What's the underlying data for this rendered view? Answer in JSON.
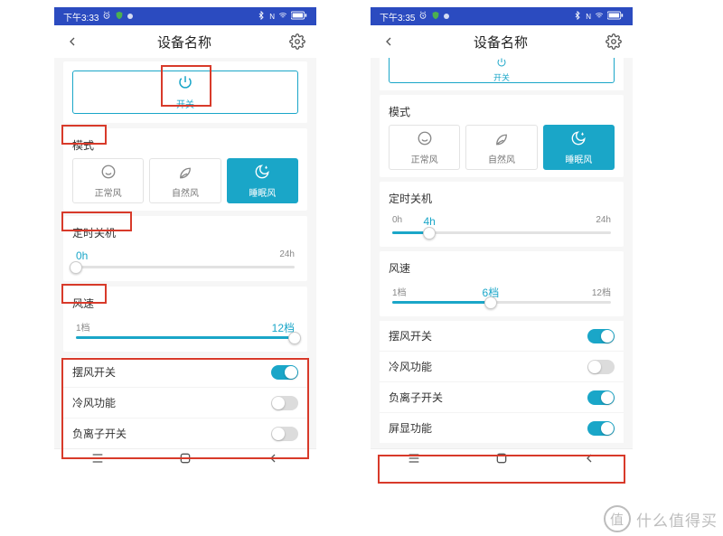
{
  "colors": {
    "accent": "#1aa6c8",
    "statusbar_bg": "#2b4bc0",
    "highlight": "#d83a2a",
    "divider": "#f3f3f3",
    "track": "#e2e2e2",
    "text": "#333333",
    "muted": "#888888",
    "watermark": "#bdbdbd"
  },
  "watermark": {
    "badge": "值",
    "text": "什么值得买"
  },
  "phone_left": {
    "statusbar": {
      "time": "下午3:33",
      "right_text": ""
    },
    "header": {
      "title": "设备名称"
    },
    "power": {
      "label": "开关"
    },
    "mode": {
      "title": "模式",
      "items": [
        {
          "label": "正常风",
          "icon": "smile",
          "active": false
        },
        {
          "label": "自然风",
          "icon": "leaf",
          "active": false
        },
        {
          "label": "睡眠风",
          "icon": "moon",
          "active": true
        }
      ]
    },
    "timer": {
      "title": "定时关机",
      "min_label": "0h",
      "max_label": "24h",
      "value_label": "",
      "percent": 0
    },
    "speed": {
      "title": "风速",
      "min_label": "1档",
      "max_label": "12档",
      "value_label": "",
      "percent": 100
    },
    "toggles": [
      {
        "label": "摆风开关",
        "on": true
      },
      {
        "label": "冷风功能",
        "on": false
      },
      {
        "label": "负离子开关",
        "on": false
      }
    ]
  },
  "phone_right": {
    "statusbar": {
      "time": "下午3:35",
      "right_text": ""
    },
    "header": {
      "title": "设备名称"
    },
    "power": {
      "label": "开关"
    },
    "mode": {
      "title": "模式",
      "items": [
        {
          "label": "正常风",
          "icon": "smile",
          "active": false
        },
        {
          "label": "自然风",
          "icon": "leaf",
          "active": false
        },
        {
          "label": "睡眠风",
          "icon": "moon",
          "active": true
        }
      ]
    },
    "timer": {
      "title": "定时关机",
      "min_label": "0h",
      "max_label": "24h",
      "value_label": "4h",
      "percent": 17
    },
    "speed": {
      "title": "风速",
      "min_label": "1档",
      "max_label": "12档",
      "value_label": "6档",
      "percent": 45
    },
    "toggles": [
      {
        "label": "摆风开关",
        "on": true
      },
      {
        "label": "冷风功能",
        "on": false
      },
      {
        "label": "负离子开关",
        "on": true
      },
      {
        "label": "屏显功能",
        "on": true
      }
    ]
  }
}
